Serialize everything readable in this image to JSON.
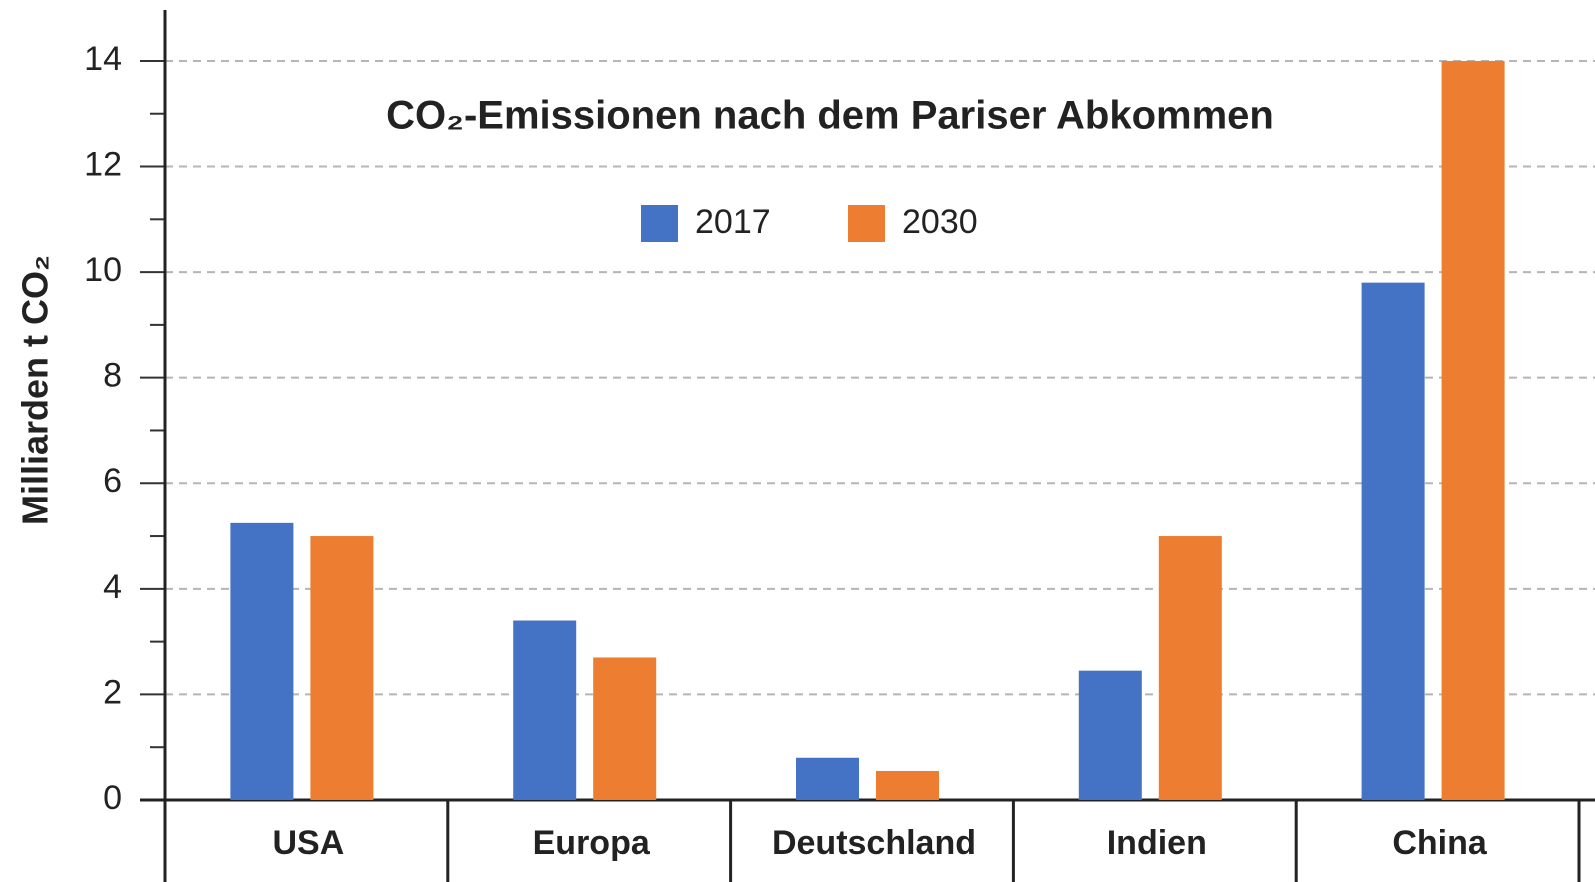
{
  "chart_data": {
    "type": "bar",
    "title": "CO₂-Emissionen nach dem Pariser Abkommen",
    "y_label": "Milliarden t CO₂",
    "categories": [
      "USA",
      "Europa",
      "Deutschland",
      "Indien",
      "China"
    ],
    "series": [
      {
        "name": "2017",
        "color": "#4472c4",
        "values": [
          5.25,
          3.4,
          0.8,
          2.45,
          9.8
        ]
      },
      {
        "name": "2030",
        "color": "#ed7d31",
        "values": [
          5.0,
          2.7,
          0.55,
          5.0,
          14.0
        ]
      }
    ],
    "ylim": [
      0,
      15
    ],
    "yticks": [
      0,
      2,
      4,
      6,
      8,
      10,
      12,
      14
    ],
    "yminorticks": [
      1,
      3,
      5,
      7,
      9,
      11,
      13
    ],
    "grid": true,
    "legend": "top"
  }
}
